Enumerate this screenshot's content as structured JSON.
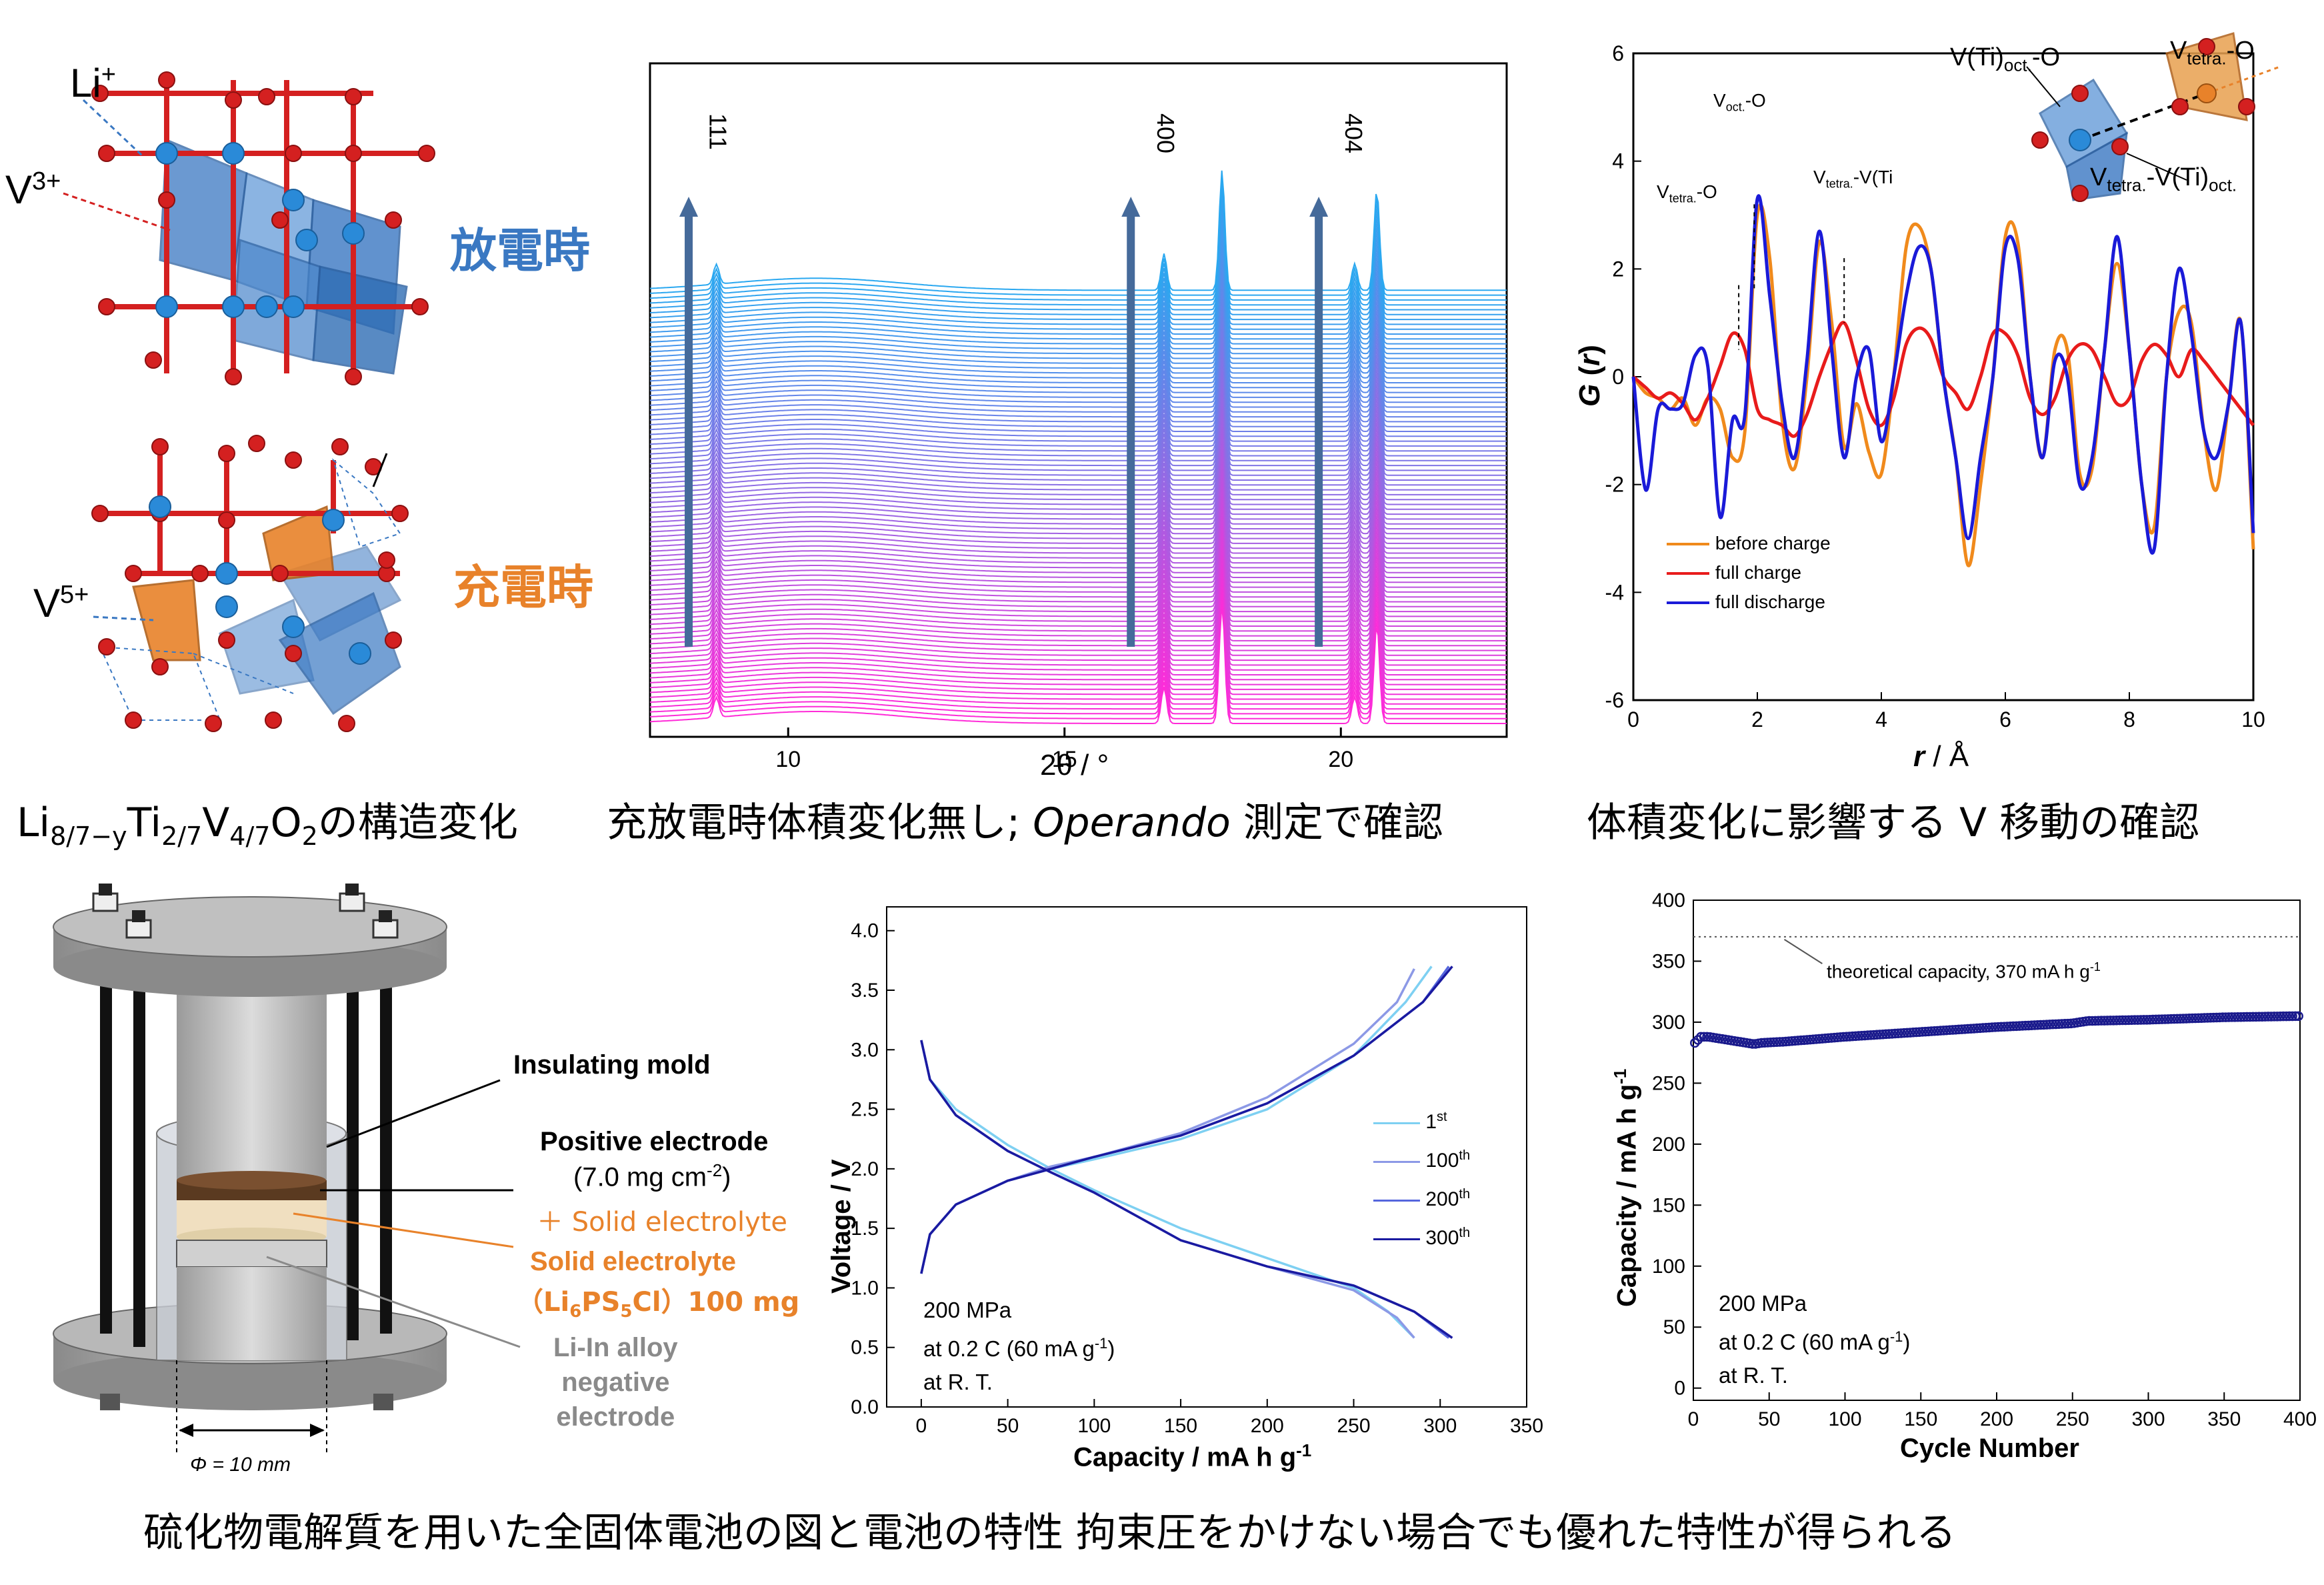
{
  "captions": {
    "structure": "Li8/7−yTi2/7V4/7O2の構造変化",
    "structure_parts": {
      "pre": "Li",
      "s1": "8/7−y",
      "t1": "Ti",
      "s2": "2/7",
      "t2": "V",
      "s3": "4/7",
      "t3": "O",
      "s4": "2",
      "post": "の構造変化"
    },
    "xrd_pre": "充放電時体積変化無し; ",
    "xrd_italic": "Operando",
    "xrd_post": " 測定で確認",
    "pdf": "体積変化に影響する V 移動の確認",
    "bottom": "硫化物電解質を用いた全固体電池の図と電池の特性 拘束圧をかけない場合でも優れた特性が得られる"
  },
  "structure_panel": {
    "li_label": "Li",
    "li_sup": "+",
    "v3_label": "V",
    "v3_sup": "3+",
    "v5_label": "V",
    "v5_sup": "5+",
    "discharge_label": "放電時",
    "charge_label": "充電時",
    "colors": {
      "blue": "#3a78c2",
      "orange": "#e8822a",
      "oxygen": "#d42020"
    }
  },
  "cell_diagram": {
    "insulating_mold": "Insulating mold",
    "positive_electrode": "Positive electrode",
    "loading": "(7.0 mg cm",
    "loading_sup": "-2",
    "loading_end": ")",
    "plus_se": "＋ Solid electrolyte",
    "se_label": "Solid electrolyte",
    "se_formula_pre": "（Li",
    "se_formula_s1": "6",
    "se_formula_mid": "PS",
    "se_formula_s2": "5",
    "se_formula_post": "Cl）100 mg",
    "neg1": "Li-In alloy",
    "neg2": "negative",
    "neg3": "electrode",
    "phi": "Φ = 10 mm",
    "colors": {
      "se": "#e8822a",
      "neg": "#8a8a8a"
    }
  },
  "chart_data": [
    {
      "type": "line",
      "name": "operando-xrd",
      "xlabel": "2θ / °",
      "xlim": [
        7.5,
        23
      ],
      "xticks": [
        10,
        15,
        20
      ],
      "peak_labels": [
        {
          "text": "111",
          "x": 8.7
        },
        {
          "text": "400",
          "x": 16.8
        },
        {
          "text": "404",
          "x": 20.2
        }
      ],
      "peaks_2theta": [
        8.7,
        16.8,
        17.85,
        20.25,
        20.65
      ],
      "color_start": "#ff2bd8",
      "color_end": "#2aa8f0",
      "scan_count": 90
    },
    {
      "type": "line",
      "name": "pdf",
      "xlabel_italic": "r",
      "xlabel_unit": " / Å",
      "ylabel_italic": "G",
      "ylabel_mid": " (",
      "ylabel_r": "r",
      "ylabel_end": ")",
      "xlim": [
        0,
        10
      ],
      "ylim": [
        -6,
        6
      ],
      "xticks": [
        0,
        2,
        4,
        6,
        8,
        10
      ],
      "yticks": [
        -6,
        -4,
        -2,
        0,
        2,
        4,
        6
      ],
      "annotations": [
        {
          "main": "V",
          "sub": "oct.",
          "tail": "-O",
          "x": 1.95
        },
        {
          "main": "V",
          "sub": "tetra.",
          "tail": "-O",
          "x": 1.7
        },
        {
          "main": "V",
          "sub": "tetra.",
          "tail": "-V(Ti",
          "x": 3.4
        }
      ],
      "inset_labels": {
        "vtetra_o": {
          "main": "V",
          "sub": "tetra.",
          "tail": "-O"
        },
        "vti_oct_o": {
          "main": "V(Ti)",
          "sub": "oct.",
          "tail": "-O"
        },
        "vtetra_vti": {
          "main": "V",
          "sub": "tetra.",
          "mid": "-V(Ti)",
          "sub2": "oct.",
          "tail": ""
        }
      },
      "legend_position": "bottom-left",
      "series": [
        {
          "name": "before charge",
          "color": "#f08a1c",
          "x": [
            0,
            0.2,
            0.4,
            0.6,
            0.8,
            1.0,
            1.2,
            1.4,
            1.6,
            1.8,
            2.0,
            2.2,
            2.4,
            2.6,
            2.8,
            3.0,
            3.2,
            3.4,
            3.6,
            3.8,
            4.0,
            4.2,
            4.4,
            4.6,
            4.8,
            5.0,
            5.2,
            5.4,
            5.6,
            5.8,
            6.0,
            6.2,
            6.4,
            6.6,
            6.8,
            7.0,
            7.2,
            7.4,
            7.6,
            7.8,
            8.0,
            8.2,
            8.4,
            8.6,
            8.8,
            9.0,
            9.2,
            9.4,
            9.6,
            9.8,
            10.0
          ],
          "y": [
            0,
            -0.3,
            -0.4,
            -0.6,
            -0.4,
            -0.9,
            -0.4,
            -0.6,
            -1.5,
            -1.0,
            3.0,
            2.2,
            -0.8,
            -1.7,
            0.0,
            2.5,
            1.0,
            -1.3,
            -0.5,
            -1.4,
            -1.8,
            0.0,
            2.4,
            2.8,
            2.0,
            0.0,
            -1.5,
            -3.5,
            -2.0,
            0.0,
            2.6,
            2.5,
            0.0,
            -1.5,
            0.5,
            0.5,
            -1.8,
            -1.7,
            0.5,
            2.1,
            0.5,
            -2.0,
            -2.8,
            0.0,
            1.2,
            1.0,
            -1.0,
            -2.1,
            -0.5,
            1.0,
            -3.2
          ]
        },
        {
          "name": "full charge",
          "color": "#e81b1b",
          "x": [
            0,
            0.2,
            0.4,
            0.6,
            0.8,
            1.0,
            1.2,
            1.4,
            1.6,
            1.8,
            2.0,
            2.2,
            2.4,
            2.6,
            2.8,
            3.0,
            3.2,
            3.4,
            3.6,
            3.8,
            4.0,
            4.2,
            4.4,
            4.6,
            4.8,
            5.0,
            5.2,
            5.4,
            5.6,
            5.8,
            6.0,
            6.2,
            6.4,
            6.6,
            6.8,
            7.0,
            7.2,
            7.4,
            7.6,
            7.8,
            8.0,
            8.2,
            8.4,
            8.6,
            8.8,
            9.0,
            9.2,
            9.4,
            9.6,
            9.8,
            10.0
          ],
          "y": [
            0,
            -0.2,
            -0.4,
            -0.3,
            -0.5,
            -0.8,
            -0.4,
            0.2,
            0.8,
            0.5,
            -0.6,
            -0.8,
            -0.9,
            -1.1,
            -0.7,
            0.0,
            0.6,
            1.0,
            0.3,
            -0.6,
            -0.9,
            -0.4,
            0.6,
            0.9,
            0.7,
            0.0,
            -0.3,
            -0.6,
            0.0,
            0.8,
            0.8,
            0.4,
            -0.4,
            -0.7,
            -0.4,
            0.3,
            0.6,
            0.5,
            0.0,
            -0.5,
            -0.4,
            0.3,
            0.6,
            0.4,
            0.0,
            0.5,
            0.3,
            0.0,
            -0.3,
            -0.6,
            -0.9
          ]
        },
        {
          "name": "full discharge",
          "color": "#1a1ad8",
          "x": [
            0,
            0.2,
            0.4,
            0.6,
            0.8,
            1.0,
            1.2,
            1.4,
            1.6,
            1.8,
            2.0,
            2.2,
            2.4,
            2.6,
            2.8,
            3.0,
            3.2,
            3.4,
            3.6,
            3.8,
            4.0,
            4.2,
            4.4,
            4.6,
            4.8,
            5.0,
            5.2,
            5.4,
            5.6,
            5.8,
            6.0,
            6.2,
            6.4,
            6.6,
            6.8,
            7.0,
            7.2,
            7.4,
            7.6,
            7.8,
            8.0,
            8.2,
            8.4,
            8.6,
            8.8,
            9.0,
            9.2,
            9.4,
            9.6,
            9.8,
            10.0
          ],
          "y": [
            0,
            -2.1,
            -0.6,
            -0.6,
            -0.5,
            0.4,
            0.2,
            -2.6,
            -0.8,
            -0.7,
            3.3,
            1.5,
            -0.5,
            -1.5,
            0.3,
            2.7,
            0.5,
            -1.5,
            0.0,
            0.5,
            -1.2,
            0.0,
            1.5,
            2.4,
            2.0,
            0.0,
            -1.5,
            -3.0,
            -1.5,
            0.0,
            2.4,
            2.2,
            0.0,
            -1.5,
            0.3,
            0.0,
            -2.0,
            -1.5,
            0.5,
            2.6,
            0.5,
            -2.0,
            -3.2,
            0.0,
            2.0,
            0.8,
            -1.0,
            -1.5,
            -0.5,
            1.0,
            -2.9
          ]
        }
      ]
    },
    {
      "type": "line",
      "name": "charge-discharge",
      "xlabel_main": "Capacity   /  mA h g",
      "xlabel_sup": "-1",
      "ylabel": "Voltage   /  V",
      "xlim": [
        -20,
        350
      ],
      "ylim": [
        0.0,
        4.2
      ],
      "xticks": [
        0,
        50,
        100,
        150,
        200,
        250,
        300,
        350
      ],
      "yticks": [
        0.0,
        0.5,
        1.0,
        1.5,
        2.0,
        2.5,
        3.0,
        3.5,
        4.0
      ],
      "conditions": [
        "200 MPa",
        "at 0.2 C (60 mA g",
        "at R. T."
      ],
      "conditions_sup": "-1",
      "conditions_end": ")",
      "legend_position": "right",
      "series": [
        {
          "name": "1",
          "sup": "st",
          "color": "#7ed0f2",
          "charge": {
            "x": [
              0,
              5,
              20,
              50,
              75,
              100,
              150,
              200,
              250,
              280,
              295
            ],
            "y": [
              1.12,
              1.45,
              1.7,
              1.9,
              2.0,
              2.08,
              2.25,
              2.5,
              2.95,
              3.4,
              3.7
            ]
          },
          "discharge": {
            "x": [
              0,
              5,
              20,
              50,
              75,
              100,
              150,
              200,
              250,
              270,
              285
            ],
            "y": [
              3.08,
              2.75,
              2.5,
              2.2,
              2.0,
              1.82,
              1.5,
              1.25,
              1.0,
              0.8,
              0.58
            ]
          }
        },
        {
          "name": "100",
          "sup": "th",
          "color": "#8c99e6",
          "charge": {
            "x": [
              0,
              5,
              20,
              50,
              75,
              100,
              150,
              200,
              250,
              275,
              285
            ],
            "y": [
              1.12,
              1.45,
              1.7,
              1.9,
              2.02,
              2.1,
              2.3,
              2.6,
              3.05,
              3.4,
              3.68
            ]
          },
          "discharge": {
            "x": [
              0,
              5,
              20,
              50,
              75,
              100,
              150,
              200,
              250,
              275,
              285
            ],
            "y": [
              3.08,
              2.75,
              2.45,
              2.15,
              1.97,
              1.8,
              1.4,
              1.18,
              0.98,
              0.75,
              0.58
            ]
          }
        },
        {
          "name": "200",
          "sup": "th",
          "color": "#5566dd",
          "charge": {
            "x": [
              0,
              5,
              20,
              50,
              75,
              100,
              150,
              200,
              250,
              290,
              305
            ],
            "y": [
              1.12,
              1.45,
              1.7,
              1.9,
              2.0,
              2.1,
              2.28,
              2.55,
              2.95,
              3.4,
              3.7
            ]
          },
          "discharge": {
            "x": [
              0,
              5,
              20,
              50,
              75,
              100,
              150,
              200,
              250,
              285,
              305
            ],
            "y": [
              3.08,
              2.75,
              2.45,
              2.15,
              1.97,
              1.8,
              1.4,
              1.18,
              1.02,
              0.8,
              0.58
            ]
          }
        },
        {
          "name": "300",
          "sup": "th",
          "color": "#1a1aa0",
          "charge": {
            "x": [
              0,
              5,
              20,
              50,
              75,
              100,
              150,
              200,
              250,
              290,
              307
            ],
            "y": [
              1.12,
              1.45,
              1.7,
              1.9,
              2.0,
              2.1,
              2.28,
              2.55,
              2.95,
              3.4,
              3.7
            ]
          },
          "discharge": {
            "x": [
              0,
              5,
              20,
              50,
              75,
              100,
              150,
              200,
              250,
              285,
              307
            ],
            "y": [
              3.08,
              2.75,
              2.45,
              2.15,
              1.97,
              1.8,
              1.4,
              1.18,
              1.02,
              0.8,
              0.58
            ]
          }
        }
      ]
    },
    {
      "type": "scatter",
      "name": "cycle-life",
      "xlabel": "Cycle Number",
      "ylabel_main": "Capacity / mA h g",
      "ylabel_sup": "-1",
      "xlim": [
        0,
        400
      ],
      "ylim": [
        -10,
        400
      ],
      "xticks": [
        0,
        50,
        100,
        150,
        200,
        250,
        300,
        350,
        400
      ],
      "yticks": [
        0,
        50,
        100,
        150,
        200,
        250,
        300,
        350,
        400
      ],
      "theoretical_label": "theoretical capacity, 370 mA h g",
      "theoretical_sup": "-1",
      "theoretical_value": 370,
      "conditions": [
        "200 MPa",
        "at 0.2 C (60 mA g",
        "at R. T."
      ],
      "conditions_sup": "-1",
      "conditions_end": ")",
      "color": "#1a1a8c",
      "points": {
        "x": [
          1,
          5,
          10,
          20,
          30,
          40,
          45,
          60,
          100,
          150,
          200,
          250,
          260,
          300,
          350,
          400
        ],
        "y": [
          283,
          288,
          288,
          286,
          284,
          282,
          283,
          284,
          288,
          292,
          296,
          299,
          301,
          302,
          304,
          305
        ]
      }
    }
  ]
}
